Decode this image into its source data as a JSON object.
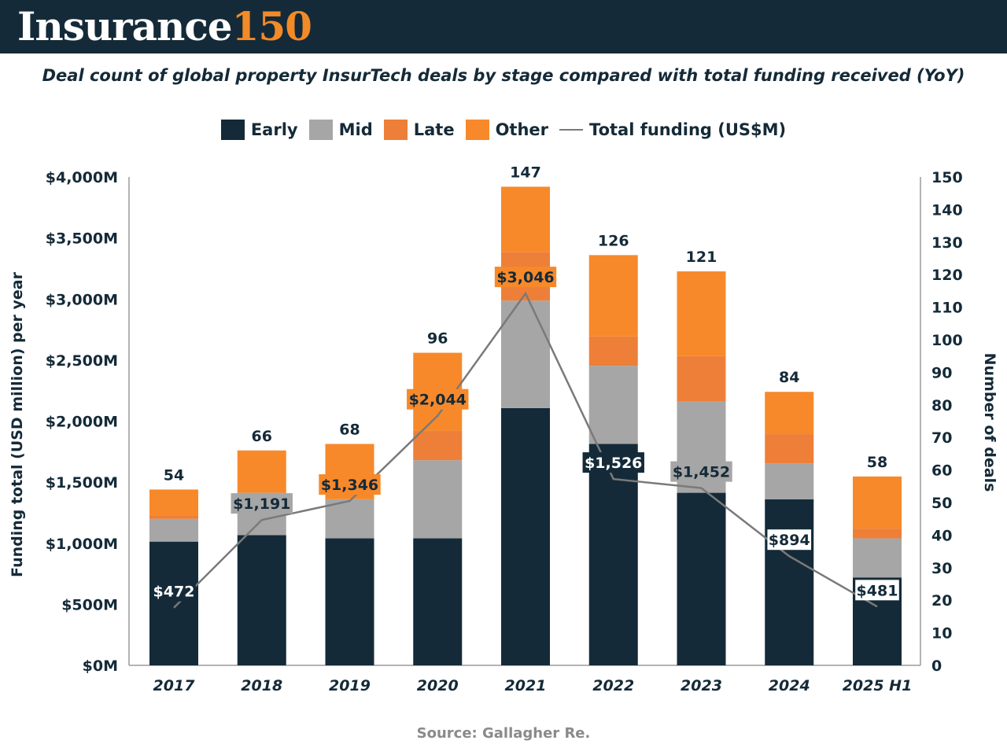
{
  "brand": {
    "word": "Insurance",
    "number": "150"
  },
  "chart_data": {
    "type": "bar",
    "title": "Deal count of global property InsurTech deals by stage compared with total funding received (YoY)",
    "categories": [
      "2017",
      "2018",
      "2019",
      "2020",
      "2021",
      "2022",
      "2023",
      "2024",
      "2025 H1"
    ],
    "series": [
      {
        "name": "Early",
        "color": "#142a38",
        "values": [
          38,
          40,
          39,
          39,
          79,
          68,
          53,
          51,
          27
        ]
      },
      {
        "name": "Mid",
        "color": "#a6a6a6",
        "values": [
          7,
          13,
          12,
          24,
          33,
          24,
          28,
          11,
          12
        ]
      },
      {
        "name": "Late",
        "color": "#ee7f38",
        "values": [
          1,
          0,
          0,
          9,
          15,
          9,
          14,
          9,
          3
        ]
      },
      {
        "name": "Other",
        "color": "#f7892a",
        "values": [
          8,
          13,
          17,
          24,
          20,
          25,
          26,
          13,
          16
        ]
      }
    ],
    "deal_totals": [
      "54",
      "66",
      "68",
      "96",
      "147",
      "126",
      "121",
      "84",
      "58"
    ],
    "line_series": {
      "name": "Total funding (US$M)",
      "color": "#7a7a7a",
      "values": [
        472,
        1191,
        1346,
        2044,
        3046,
        1526,
        1452,
        894,
        481
      ],
      "labels": [
        "$472",
        "$1,191",
        "$1,346",
        "$2,044",
        "$3,046",
        "$1,526",
        "$1,452",
        "$894",
        "$481"
      ],
      "label_styles": [
        "dark",
        "gray",
        "orange",
        "orange",
        "orange",
        "dark",
        "gray",
        "white",
        "white"
      ]
    },
    "left_axis": {
      "label": "Funding total (USD million) per year",
      "range": [
        0,
        4000
      ],
      "ticks": [
        "$0M",
        "$500M",
        "$1,000M",
        "$1,500M",
        "$2,000M",
        "$2,500M",
        "$3,000M",
        "$3,500M",
        "$4,000M"
      ]
    },
    "right_axis": {
      "label": "Number of deals",
      "range": [
        0,
        150
      ],
      "ticks": [
        "0",
        "10",
        "20",
        "30",
        "40",
        "50",
        "60",
        "70",
        "80",
        "90",
        "100",
        "110",
        "120",
        "130",
        "140",
        "150"
      ]
    },
    "legend": [
      "Early",
      "Mid",
      "Late",
      "Other",
      "Total funding (US$M)"
    ]
  },
  "source": "Source: Gallagher Re."
}
